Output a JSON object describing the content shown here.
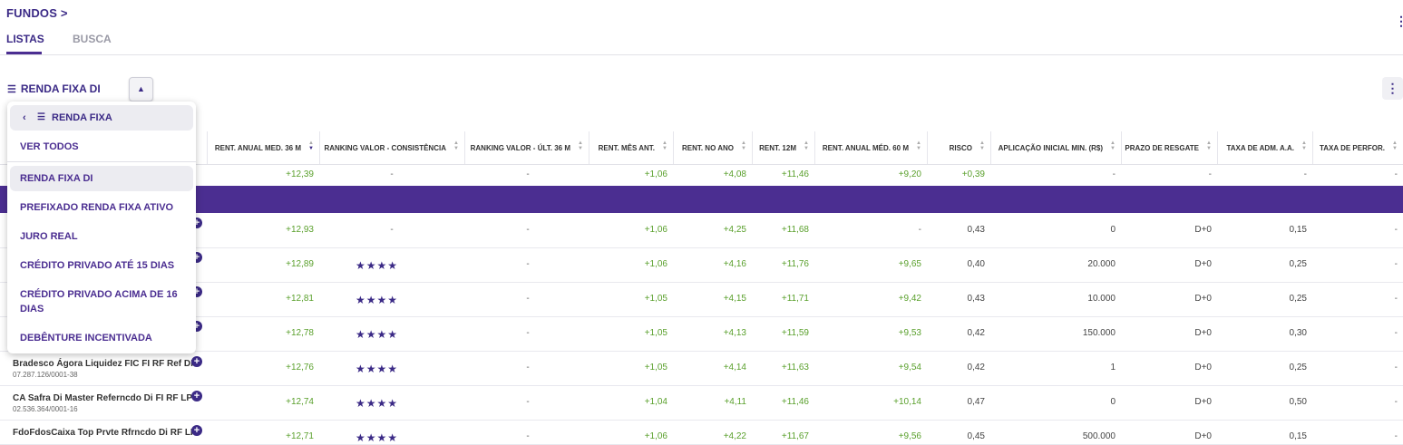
{
  "header": {
    "breadcrumb": "FUNDOS >",
    "tabs": [
      "LISTAS",
      "BUSCA"
    ]
  },
  "list": {
    "title": "RENDA FIXA DI",
    "toggle_glyph": "▲"
  },
  "dropdown": {
    "back_label": "RENDA FIXA",
    "items": [
      "VER TODOS",
      "RENDA FIXA DI",
      "PREFIXADO RENDA FIXA ATIVO",
      "JURO REAL",
      "CRÉDITO PRIVADO ATÉ 15 DIAS",
      "CRÉDITO PRIVADO ACIMA DE 16 DIAS",
      "DEBÊNTURE INCENTIVADA"
    ],
    "selected": "RENDA FIXA DI"
  },
  "table": {
    "columns": [
      "RENT. ANUAL MED. 36 M",
      "RANKING VALOR - CONSISTÊNCIA",
      "RANKING VALOR - ÚLT. 36 M",
      "RENT. MÊS ANT.",
      "RENT. NO ANO",
      "RENT. 12M",
      "RENT. ANUAL MÉD. 60 M",
      "RISCO",
      "APLICAÇÃO INICIAL MIN. (R$)",
      "PRAZO DE RESGATE",
      "TAXA DE ADM. A.A.",
      "TAXA DE PERFOR."
    ],
    "summary": [
      "+12,39",
      "-",
      "-",
      "+1,06",
      "+4,08",
      "+11,46",
      "+9,20",
      "+0,39",
      "-",
      "-",
      "-",
      "-"
    ],
    "rows": [
      {
        "name": "",
        "cnpj": "",
        "values": [
          "+12,93",
          "-",
          "-",
          "+1,06",
          "+4,25",
          "+11,68",
          "-",
          "0,43",
          "0",
          "D+0",
          "0,15",
          "-"
        ]
      },
      {
        "name": "",
        "cnpj": "",
        "values": [
          "+12,89",
          "★★★★",
          "-",
          "+1,06",
          "+4,16",
          "+11,76",
          "+9,65",
          "0,40",
          "20.000",
          "D+0",
          "0,25",
          "-"
        ]
      },
      {
        "name": "",
        "cnpj": "",
        "values": [
          "+12,81",
          "★★★★",
          "-",
          "+1,05",
          "+4,15",
          "+11,71",
          "+9,42",
          "0,43",
          "10.000",
          "D+0",
          "0,25",
          "-"
        ]
      },
      {
        "name": "",
        "cnpj": "",
        "values": [
          "+12,78",
          "★★★★",
          "-",
          "+1,05",
          "+4,13",
          "+11,59",
          "+9,53",
          "0,42",
          "150.000",
          "D+0",
          "0,30",
          "-"
        ]
      },
      {
        "name": "Bradesco Ágora Liquidez FIC FI RF Ref DI",
        "cnpj": "07.287.126/0001-38",
        "values": [
          "+12,76",
          "★★★★",
          "-",
          "+1,05",
          "+4,14",
          "+11,63",
          "+9,54",
          "0,42",
          "1",
          "D+0",
          "0,25",
          "-"
        ]
      },
      {
        "name": "CA Safra Di Master Referncdo Di FI RF LP",
        "cnpj": "02.536.364/0001-16",
        "values": [
          "+12,74",
          "★★★★",
          "-",
          "+1,04",
          "+4,11",
          "+11,46",
          "+10,14",
          "0,47",
          "0",
          "D+0",
          "0,50",
          "-"
        ]
      },
      {
        "name": "FdoFdosCaixa Top Prvte Rfrncdo Di RF LP",
        "cnpj": "",
        "values": [
          "+12,71",
          "★★★★",
          "-",
          "+1,06",
          "+4,22",
          "+11,67",
          "+9,56",
          "0,45",
          "500.000",
          "D+0",
          "0,15",
          "-"
        ]
      }
    ]
  }
}
